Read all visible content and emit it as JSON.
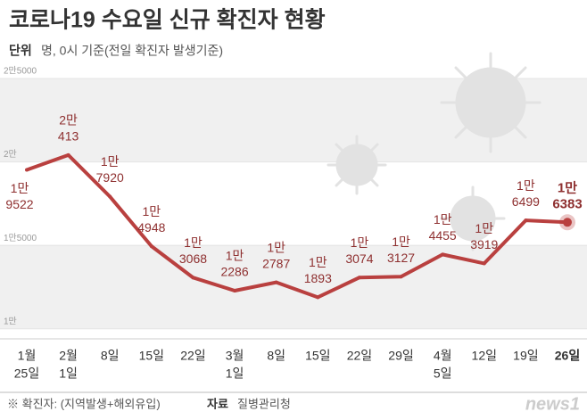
{
  "chart_data": {
    "type": "line",
    "title": "코로나19 수요일 신규 확진자 현황",
    "unit_label": "단위",
    "subtitle": "명, 0시 기준(전일 확진자 발생기준)",
    "categories": [
      [
        "1월",
        "25일"
      ],
      [
        "2월",
        "1일"
      ],
      [
        "8일"
      ],
      [
        "15일"
      ],
      [
        "22일"
      ],
      [
        "3월",
        "1일"
      ],
      [
        "8일"
      ],
      [
        "15일"
      ],
      [
        "22일"
      ],
      [
        "29일"
      ],
      [
        "4월",
        "5일"
      ],
      [
        "12일"
      ],
      [
        "19일"
      ],
      [
        "26일"
      ]
    ],
    "values": [
      19522,
      20413,
      17920,
      14948,
      13068,
      12286,
      12787,
      11893,
      13074,
      13127,
      14455,
      13919,
      16499,
      16383
    ],
    "value_labels": [
      [
        "1만",
        "9522"
      ],
      [
        "2만",
        "413"
      ],
      [
        "1만",
        "7920"
      ],
      [
        "1만",
        "4948"
      ],
      [
        "1만",
        "3068"
      ],
      [
        "1만",
        "2286"
      ],
      [
        "1만",
        "2787"
      ],
      [
        "1만",
        "1893"
      ],
      [
        "1만",
        "3074"
      ],
      [
        "1만",
        "3127"
      ],
      [
        "1만",
        "4455"
      ],
      [
        "1만",
        "3919"
      ],
      [
        "1만",
        "6499"
      ],
      [
        "1만",
        "6383"
      ]
    ],
    "color": "#b9403f",
    "ylim": [
      9400,
      25000
    ],
    "yticks": [
      {
        "value": 10000,
        "label": "1만"
      },
      {
        "value": 15000,
        "label": "1만5000"
      },
      {
        "value": 20000,
        "label": "2만"
      },
      {
        "value": 25000,
        "label": "2만5000"
      }
    ],
    "note": "※ 확진자: (지역발생+해외유입)",
    "source_label": "자료",
    "source": "질병관리청",
    "logo": "news1"
  }
}
